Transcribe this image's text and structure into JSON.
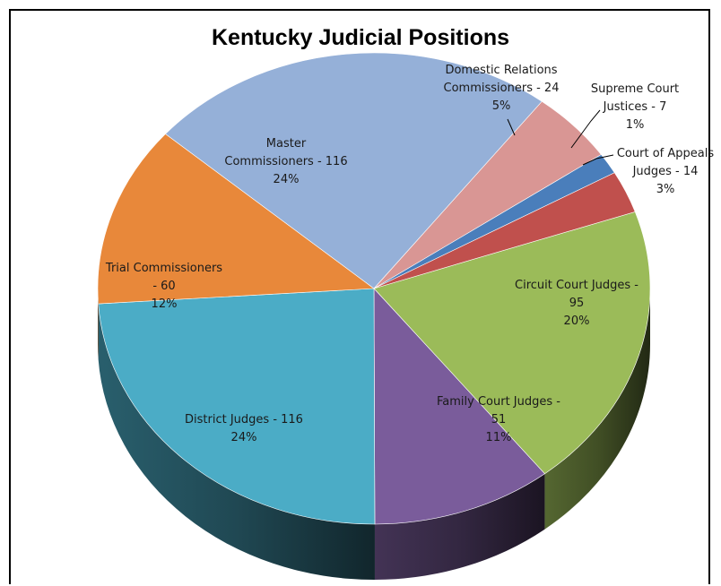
{
  "chart_data": {
    "type": "pie",
    "title": "Kentucky Judicial Positions",
    "style": "3d-exploded-free",
    "slices": [
      {
        "name": "Circuit Court Judges",
        "value": 95,
        "percent": "20%",
        "color": "#9bbb59",
        "label_lines": [
          "Circuit Court Judges -",
          "95",
          "20%"
        ]
      },
      {
        "name": "Family Court Judges",
        "value": 51,
        "percent": "11%",
        "color": "#7a5c9b",
        "label_lines": [
          "Family Court Judges -",
          "51",
          "11%"
        ]
      },
      {
        "name": "District Judges",
        "value": 116,
        "percent": "24%",
        "color": "#4bacc6",
        "label_lines": [
          "District Judges - 116",
          "24%"
        ]
      },
      {
        "name": "Trial Commissioners",
        "value": 60,
        "percent": "12%",
        "color": "#e8883a",
        "label_lines": [
          "Trial Commissioners",
          "- 60",
          "12%"
        ]
      },
      {
        "name": "Master Commissioners",
        "value": 116,
        "percent": "24%",
        "color": "#95b0d8",
        "label_lines": [
          "Master",
          "Commissioners - 116",
          "24%"
        ]
      },
      {
        "name": "Domestic Relations Commissioners",
        "value": 24,
        "percent": "5%",
        "color": "#d99694",
        "label_lines": [
          "Domestic Relations",
          "Commissioners - 24",
          "5%"
        ]
      },
      {
        "name": "Supreme Court Justices",
        "value": 7,
        "percent": "1%",
        "color": "#4a7ebb",
        "label_lines": [
          "Supreme Court",
          "Justices - 7",
          "1%"
        ]
      },
      {
        "name": "Court of Appeals Judges",
        "value": 14,
        "percent": "3%",
        "color": "#c0504d",
        "label_lines": [
          "Court of Appeals",
          "Judges - 14",
          "3%"
        ]
      }
    ]
  }
}
